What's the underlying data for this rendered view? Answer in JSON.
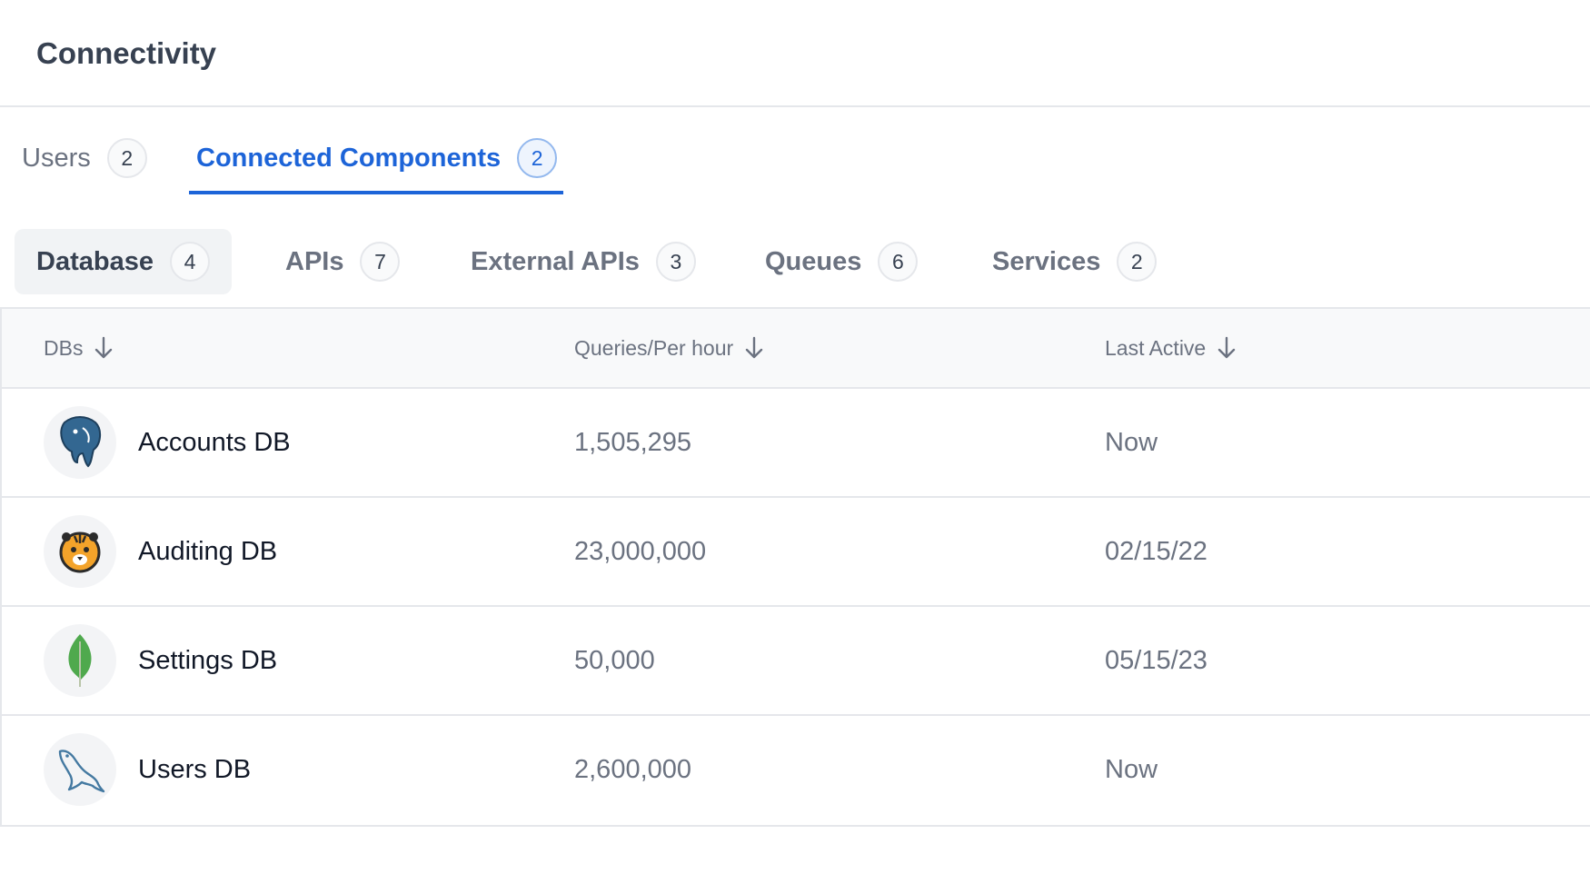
{
  "header": {
    "title": "Connectivity"
  },
  "tabs": [
    {
      "label": "Users",
      "count": "2"
    },
    {
      "label": "Connected Components",
      "count": "2"
    }
  ],
  "subtabs": [
    {
      "label": "Database",
      "count": "4"
    },
    {
      "label": "APIs",
      "count": "7"
    },
    {
      "label": "External APIs",
      "count": "3"
    },
    {
      "label": "Queues",
      "count": "6"
    },
    {
      "label": "Services",
      "count": "2"
    }
  ],
  "table": {
    "columns": [
      "DBs",
      "Queries/Per hour",
      "Last Active"
    ],
    "rows": [
      {
        "name": "Accounts DB",
        "queries": "1,505,295",
        "last_active": "Now",
        "icon": "postgresql-icon"
      },
      {
        "name": "Auditing DB",
        "queries": "23,000,000",
        "last_active": "02/15/22",
        "icon": "tiger-icon"
      },
      {
        "name": "Settings DB",
        "queries": "50,000",
        "last_active": "05/15/23",
        "icon": "mongodb-leaf-icon"
      },
      {
        "name": "Users DB",
        "queries": "2,600,000",
        "last_active": "Now",
        "icon": "mysql-dolphin-icon"
      }
    ]
  },
  "colors": {
    "accent": "#1d64d8",
    "border": "#e5e7eb",
    "muted_text": "#6b7280"
  }
}
